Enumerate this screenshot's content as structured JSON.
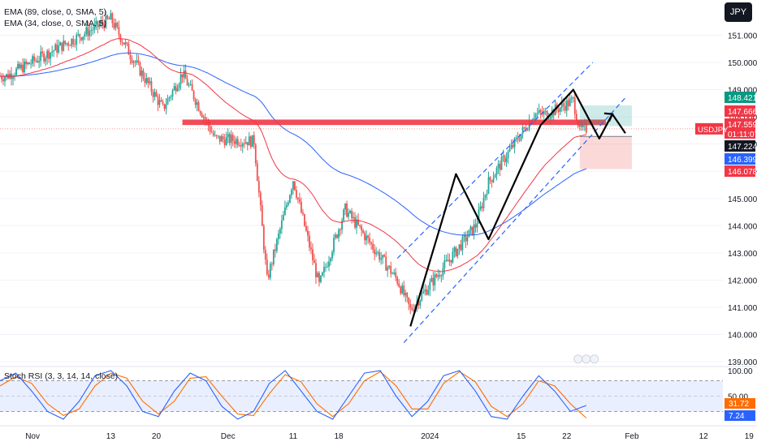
{
  "symbol": "USDJPY",
  "currency_button": "JPY",
  "countdown": "01:11:07",
  "colors": {
    "up": "#26a69a",
    "down": "#ef5350",
    "ema_fast": "#f23645",
    "ema_slow": "#2962ff",
    "zone": "#f23645",
    "dashed_channel": "#2962ff",
    "stoch_k": "#2962ff",
    "stoch_d": "#ff6d00"
  },
  "chart_data": [
    {
      "type": "candlestick",
      "indicators": [
        {
          "name": "EMA (89, close, 0, SMA, 5)"
        },
        {
          "name": "EMA (34, close, 0, SMA, 5)"
        }
      ],
      "y_axis_ticks": [
        "151.000",
        "150.000",
        "149.000",
        "148.000",
        "147.000",
        "146.000",
        "145.000",
        "144.000",
        "143.000",
        "142.000",
        "141.000",
        "140.000",
        "139.000"
      ],
      "x_axis_ticks": [
        "Nov",
        "13",
        "20",
        "Dec",
        "11",
        "18",
        "2024",
        "15",
        "22",
        "Feb",
        "12",
        "19"
      ],
      "ylim": [
        139.0,
        151.6
      ],
      "price_labels": [
        {
          "value": "148.421",
          "kind": "target"
        },
        {
          "value": "147.666",
          "kind": "entry"
        },
        {
          "value": "147.559",
          "kind": "current"
        },
        {
          "value": "147.224",
          "kind": "other"
        },
        {
          "value": "146.399",
          "kind": "ema-slow"
        },
        {
          "value": "146.078",
          "kind": "stop"
        }
      ],
      "resistance_zone": {
        "low": 147.7,
        "high": 147.9
      },
      "position": {
        "entry": 147.66,
        "target": 148.42,
        "stop": 146.08
      },
      "key_points": [
        {
          "date": "2023-10-28",
          "close": 149.5
        },
        {
          "date": "2023-11-13",
          "close": 151.6
        },
        {
          "date": "2023-11-16",
          "close": 150.3
        },
        {
          "date": "2023-11-21",
          "close": 148.3
        },
        {
          "date": "2023-11-24",
          "close": 149.6
        },
        {
          "date": "2023-11-29",
          "close": 147.2
        },
        {
          "date": "2023-12-05",
          "close": 147.1
        },
        {
          "date": "2023-12-07",
          "close": 142.0
        },
        {
          "date": "2023-12-11",
          "close": 145.7
        },
        {
          "date": "2023-12-15",
          "close": 141.8
        },
        {
          "date": "2023-12-19",
          "close": 144.6
        },
        {
          "date": "2023-12-27",
          "close": 142.0
        },
        {
          "date": "2023-12-29",
          "close": 140.9
        },
        {
          "date": "2024-01-08",
          "close": 144.0
        },
        {
          "date": "2024-01-10",
          "close": 145.6
        },
        {
          "date": "2024-01-17",
          "close": 148.1
        },
        {
          "date": "2024-01-19",
          "close": 148.1
        },
        {
          "date": "2024-01-23",
          "close": 148.6
        },
        {
          "date": "2024-01-24",
          "close": 147.5
        },
        {
          "date": "2024-01-25",
          "close": 147.56
        }
      ]
    },
    {
      "type": "line",
      "indicator": "Stoch RSI (3, 3, 14, 14, close)",
      "y_axis_ticks": [
        "100.00",
        "50.00"
      ],
      "value_labels": [
        "31.72",
        "7.24"
      ],
      "ylim": [
        0,
        100
      ],
      "levels": [
        80,
        20
      ],
      "series": [
        {
          "values": [
            80,
            95,
            60,
            20,
            5,
            40,
            90,
            100,
            70,
            20,
            10,
            60,
            95,
            80,
            30,
            5,
            20,
            75,
            100,
            60,
            20,
            5,
            50,
            95,
            100,
            50,
            10,
            40,
            90,
            100,
            60,
            10,
            5,
            50,
            90,
            60,
            20,
            31.72
          ]
        },
        {
          "values": [
            70,
            88,
            75,
            35,
            12,
            25,
            70,
            95,
            85,
            40,
            15,
            40,
            85,
            88,
            50,
            15,
            12,
            55,
            92,
            78,
            35,
            10,
            35,
            80,
            98,
            70,
            25,
            25,
            75,
            98,
            78,
            30,
            10,
            35,
            80,
            70,
            35,
            7.24
          ]
        }
      ]
    }
  ]
}
